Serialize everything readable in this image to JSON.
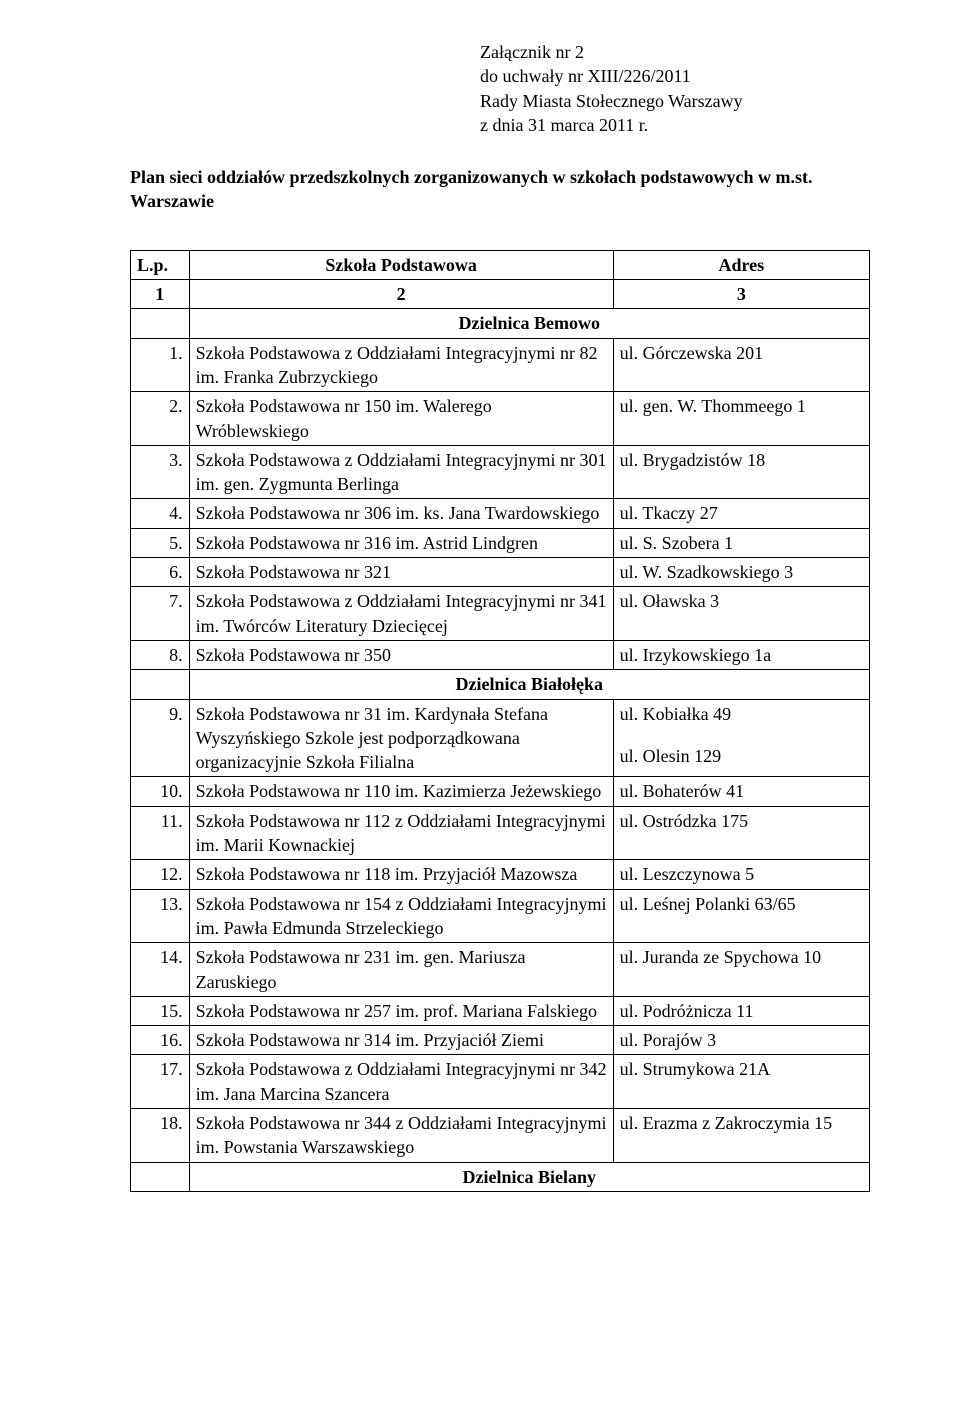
{
  "attachment": {
    "line1": "Załącznik nr 2",
    "line2": "do uchwały nr XIII/226/2011",
    "line3": "Rady Miasta Stołecznego Warszawy",
    "line4": "z dnia 31 marca 2011 r."
  },
  "plan_title": "Plan sieci oddziałów przedszkolnych zorganizowanych w szkołach podstawowych w m.st. Warszawie",
  "header": {
    "lp": "L.p.",
    "school": "Szkoła Podstawowa",
    "addr": "Adres",
    "c1": "1",
    "c2": "2",
    "c3": "3"
  },
  "districts": {
    "bemowo": "Dzielnica Bemowo",
    "bialoleka": "Dzielnica Białołęka",
    "bielany": "Dzielnica Bielany"
  },
  "rows": {
    "r1": {
      "n": "1.",
      "s": "Szkoła Podstawowa z Oddziałami Integracyjnymi nr 82 im. Franka Zubrzyckiego",
      "a": "ul. Górczewska 201"
    },
    "r2": {
      "n": "2.",
      "s": "Szkoła Podstawowa nr 150 im. Walerego Wróblewskiego",
      "a": "ul. gen. W. Thommeego 1"
    },
    "r3": {
      "n": "3.",
      "s": "Szkoła Podstawowa z Oddziałami Integracyjnymi nr 301 im. gen. Zygmunta Berlinga",
      "a": "ul. Brygadzistów 18"
    },
    "r4": {
      "n": "4.",
      "s": "Szkoła Podstawowa nr 306 im. ks. Jana Twardowskiego",
      "a": "ul. Tkaczy 27"
    },
    "r5": {
      "n": "5.",
      "s": "Szkoła Podstawowa nr 316 im. Astrid Lindgren",
      "a": "ul. S. Szobera 1"
    },
    "r6": {
      "n": "6.",
      "s": "Szkoła Podstawowa nr 321",
      "a": "ul. W. Szadkowskiego 3"
    },
    "r7": {
      "n": "7.",
      "s": "Szkoła Podstawowa z Oddziałami Integracyjnymi nr 341 im. Twórców Literatury Dziecięcej",
      "a": "ul. Oławska 3"
    },
    "r8": {
      "n": "8.",
      "s": "Szkoła Podstawowa nr 350",
      "a": "ul. Irzykowskiego 1a"
    },
    "r9": {
      "n": "9.",
      "s": "Szkoła Podstawowa nr 31 im. Kardynała Stefana Wyszyńskiego Szkole jest podporządkowana organizacyjnie Szkoła Filialna",
      "a1": "ul. Kobiałka 49",
      "a2": "ul. Olesin 129"
    },
    "r10": {
      "n": "10.",
      "s": "Szkoła Podstawowa nr 110 im. Kazimierza Jeżewskiego",
      "a": "ul. Bohaterów 41"
    },
    "r11": {
      "n": "11.",
      "s": "Szkoła Podstawowa nr 112 z Oddziałami Integracyjnymi im. Marii Kownackiej",
      "a": "ul. Ostródzka 175"
    },
    "r12": {
      "n": "12.",
      "s": "Szkoła Podstawowa nr 118 im. Przyjaciół Mazowsza",
      "a": "ul. Leszczynowa 5"
    },
    "r13": {
      "n": "13.",
      "s": "Szkoła Podstawowa nr 154 z Oddziałami Integracyjnymi im. Pawła Edmunda Strzeleckiego",
      "a": "ul. Leśnej Polanki 63/65"
    },
    "r14": {
      "n": "14.",
      "s": "Szkoła Podstawowa nr 231 im. gen. Mariusza Zaruskiego",
      "a": "ul. Juranda ze Spychowa 10"
    },
    "r15": {
      "n": "15.",
      "s": "Szkoła Podstawowa nr 257 im. prof. Mariana Falskiego",
      "a": "ul. Podróżnicza 11"
    },
    "r16": {
      "n": "16.",
      "s": "Szkoła Podstawowa nr 314 im. Przyjaciół Ziemi",
      "a": "ul. Porajów 3"
    },
    "r17": {
      "n": "17.",
      "s": "Szkoła Podstawowa z Oddziałami Integracyjnymi nr 342 im. Jana Marcina Szancera",
      "a": "ul. Strumykowa 21A"
    },
    "r18": {
      "n": "18.",
      "s": "Szkoła Podstawowa nr 344 z Oddziałami Integracyjnymi im. Powstania Warszawskiego",
      "a": "ul. Erazma z Zakroczymia 15"
    }
  }
}
